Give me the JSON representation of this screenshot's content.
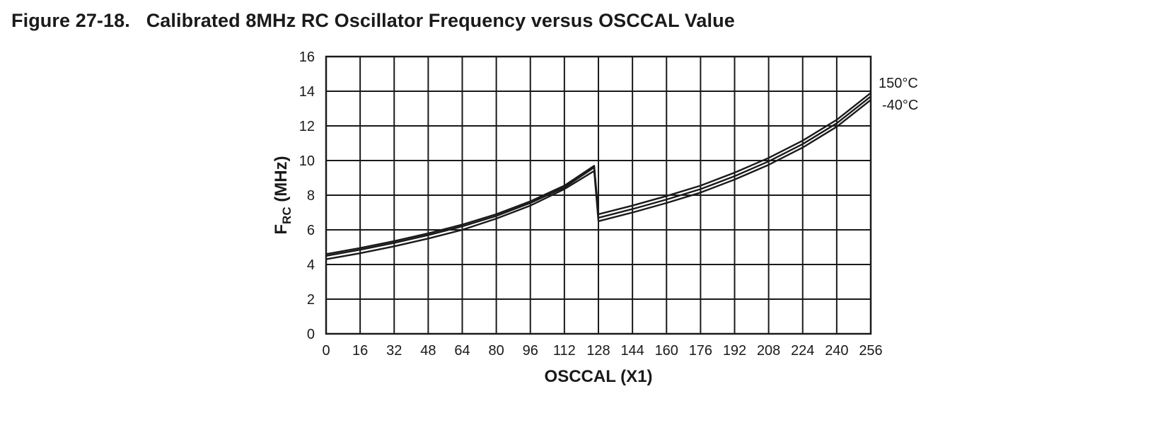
{
  "figure": {
    "number": "Figure 27-18.",
    "caption": "Calibrated 8MHz RC Oscillator Frequency versus OSCCAL Value"
  },
  "chart_data": {
    "type": "line",
    "title": "Calibrated 8MHz RC Oscillator Frequency versus OSCCAL Value",
    "xlabel": "OSCCAL (X1)",
    "ylabel_main": "F",
    "ylabel_sub": "RC",
    "ylabel_unit": " (MHz)",
    "xlim": [
      0,
      256
    ],
    "ylim": [
      0,
      16
    ],
    "xticks": [
      0,
      16,
      32,
      48,
      64,
      80,
      96,
      112,
      128,
      144,
      160,
      176,
      192,
      208,
      224,
      240,
      256
    ],
    "yticks": [
      0,
      2,
      4,
      6,
      8,
      10,
      12,
      14,
      16
    ],
    "grid": true,
    "series": [
      {
        "name": "150°C",
        "segments": [
          {
            "x": [
              0,
              16,
              32,
              48,
              64,
              80,
              96,
              112,
              126
            ],
            "y": [
              4.6,
              4.95,
              5.35,
              5.8,
              6.3,
              6.9,
              7.65,
              8.55,
              9.7
            ]
          },
          {
            "x": [
              128,
              144,
              160,
              176,
              192,
              208,
              224,
              240,
              256
            ],
            "y": [
              6.9,
              7.4,
              7.95,
              8.55,
              9.3,
              10.15,
              11.15,
              12.35,
              13.9
            ]
          }
        ]
      },
      {
        "name": "",
        "segments": [
          {
            "x": [
              0,
              16,
              32,
              48,
              64,
              80,
              96,
              112,
              126
            ],
            "y": [
              4.5,
              4.85,
              5.25,
              5.7,
              6.2,
              6.8,
              7.55,
              8.45,
              9.6
            ]
          },
          {
            "x": [
              128,
              144,
              160,
              176,
              192,
              208,
              224,
              240,
              256
            ],
            "y": [
              6.7,
              7.2,
              7.75,
              8.35,
              9.1,
              9.95,
              10.95,
              12.15,
              13.7
            ]
          }
        ]
      },
      {
        "name": "-40°C",
        "segments": [
          {
            "x": [
              0,
              16,
              32,
              48,
              64,
              80,
              96,
              112,
              126
            ],
            "y": [
              4.3,
              4.65,
              5.05,
              5.5,
              6.0,
              6.65,
              7.4,
              8.35,
              9.4
            ]
          },
          {
            "x": [
              128,
              144,
              160,
              176,
              192,
              208,
              224,
              240,
              256
            ],
            "y": [
              6.5,
              7.0,
              7.55,
              8.15,
              8.9,
              9.75,
              10.75,
              11.95,
              13.5
            ]
          }
        ]
      }
    ],
    "colors": {
      "line": "#1a1a1a",
      "grid": "#1a1a1a"
    }
  }
}
